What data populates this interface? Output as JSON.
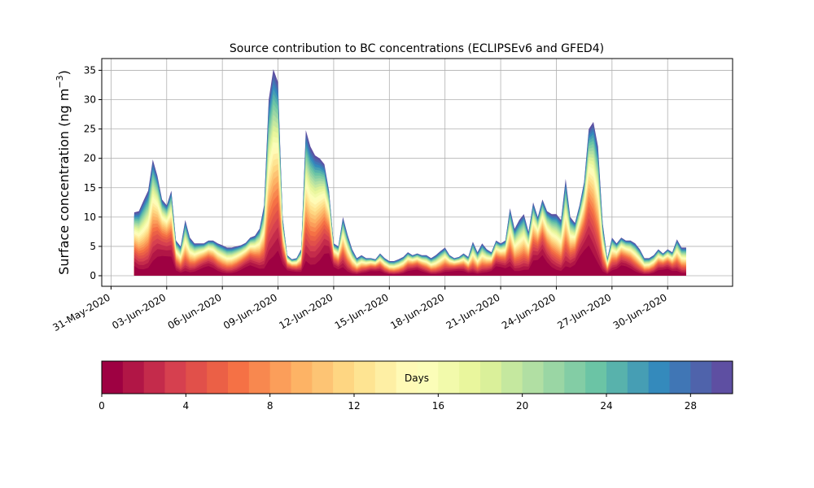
{
  "chart_data": {
    "type": "area",
    "title": "Source contribution to BC concentrations (ECLIPSEv6 and GFED4)",
    "ylabel": "Surface concentration (ng m",
    "ylabel_exponent": "−3",
    "ylabel_close": ")",
    "xlabel": "",
    "xlim": [
      "2020-05-30T12:00",
      "2020-07-03T12:00"
    ],
    "ylim": [
      -1.8,
      37
    ],
    "yticks": [
      0,
      5,
      10,
      15,
      20,
      25,
      30,
      35
    ],
    "xticks": [
      {
        "date": "2020-05-31",
        "label": "31-May-2020"
      },
      {
        "date": "2020-06-03",
        "label": "03-Jun-2020"
      },
      {
        "date": "2020-06-06",
        "label": "06-Jun-2020"
      },
      {
        "date": "2020-06-09",
        "label": "09-Jun-2020"
      },
      {
        "date": "2020-06-12",
        "label": "12-Jun-2020"
      },
      {
        "date": "2020-06-15",
        "label": "15-Jun-2020"
      },
      {
        "date": "2020-06-18",
        "label": "18-Jun-2020"
      },
      {
        "date": "2020-06-21",
        "label": "21-Jun-2020"
      },
      {
        "date": "2020-06-24",
        "label": "24-Jun-2020"
      },
      {
        "date": "2020-06-27",
        "label": "27-Jun-2020"
      },
      {
        "date": "2020-06-30",
        "label": "30-Jun-2020"
      }
    ],
    "grid": true,
    "colormap": "Spectral",
    "colormap_stops": [
      "#9e0142",
      "#d53e4f",
      "#f46d43",
      "#fdae61",
      "#fee08b",
      "#ffffbf",
      "#e6f598",
      "#abdda4",
      "#66c2a5",
      "#3288bd",
      "#5e4fa2"
    ],
    "stacked_by_days": {
      "min": 0,
      "max": 30,
      "count": 30
    },
    "colorbar": {
      "label": "Days",
      "ticks": [
        0,
        4,
        8,
        12,
        16,
        20,
        24,
        28
      ],
      "range": [
        0,
        30
      ]
    },
    "total_series": [
      [
        "2020-06-01T06:00",
        10.8
      ],
      [
        "2020-06-01T12:00",
        11.0
      ],
      [
        "2020-06-01T18:00",
        12.8
      ],
      [
        "2020-06-02T00:00",
        14.5
      ],
      [
        "2020-06-02T06:00",
        19.8
      ],
      [
        "2020-06-02T12:00",
        17.0
      ],
      [
        "2020-06-02T18:00",
        13.0
      ],
      [
        "2020-06-03T00:00",
        12.0
      ],
      [
        "2020-06-03T06:00",
        14.5
      ],
      [
        "2020-06-03T12:00",
        6.0
      ],
      [
        "2020-06-03T18:00",
        5.0
      ],
      [
        "2020-06-04T00:00",
        9.5
      ],
      [
        "2020-06-04T06:00",
        6.5
      ],
      [
        "2020-06-04T12:00",
        5.5
      ],
      [
        "2020-06-04T18:00",
        5.5
      ],
      [
        "2020-06-05T00:00",
        5.5
      ],
      [
        "2020-06-05T06:00",
        6.0
      ],
      [
        "2020-06-05T12:00",
        6.0
      ],
      [
        "2020-06-05T18:00",
        5.5
      ],
      [
        "2020-06-06T00:00",
        5.2
      ],
      [
        "2020-06-06T06:00",
        4.8
      ],
      [
        "2020-06-06T12:00",
        4.8
      ],
      [
        "2020-06-06T18:00",
        5.0
      ],
      [
        "2020-06-07T00:00",
        5.2
      ],
      [
        "2020-06-07T06:00",
        5.6
      ],
      [
        "2020-06-07T12:00",
        6.5
      ],
      [
        "2020-06-07T18:00",
        6.8
      ],
      [
        "2020-06-08T00:00",
        8.0
      ],
      [
        "2020-06-08T06:00",
        12.0
      ],
      [
        "2020-06-08T12:00",
        30.0
      ],
      [
        "2020-06-08T18:00",
        35.2
      ],
      [
        "2020-06-09T00:00",
        33.0
      ],
      [
        "2020-06-09T06:00",
        10.0
      ],
      [
        "2020-06-09T12:00",
        3.5
      ],
      [
        "2020-06-09T18:00",
        2.8
      ],
      [
        "2020-06-10T00:00",
        3.0
      ],
      [
        "2020-06-10T06:00",
        4.5
      ],
      [
        "2020-06-10T12:00",
        24.8
      ],
      [
        "2020-06-10T18:00",
        22.0
      ],
      [
        "2020-06-11T00:00",
        20.5
      ],
      [
        "2020-06-11T06:00",
        20.0
      ],
      [
        "2020-06-11T12:00",
        19.0
      ],
      [
        "2020-06-11T18:00",
        14.5
      ],
      [
        "2020-06-12T00:00",
        5.5
      ],
      [
        "2020-06-12T06:00",
        5.0
      ],
      [
        "2020-06-12T12:00",
        10.0
      ],
      [
        "2020-06-12T18:00",
        7.0
      ],
      [
        "2020-06-13T00:00",
        4.5
      ],
      [
        "2020-06-13T06:00",
        3.0
      ],
      [
        "2020-06-13T12:00",
        3.5
      ],
      [
        "2020-06-13T18:00",
        3.0
      ],
      [
        "2020-06-14T00:00",
        3.0
      ],
      [
        "2020-06-14T06:00",
        2.8
      ],
      [
        "2020-06-14T12:00",
        3.8
      ],
      [
        "2020-06-14T18:00",
        3.0
      ],
      [
        "2020-06-15T00:00",
        2.5
      ],
      [
        "2020-06-15T06:00",
        2.5
      ],
      [
        "2020-06-15T12:00",
        2.8
      ],
      [
        "2020-06-15T18:00",
        3.2
      ],
      [
        "2020-06-16T00:00",
        4.0
      ],
      [
        "2020-06-16T06:00",
        3.5
      ],
      [
        "2020-06-16T12:00",
        3.8
      ],
      [
        "2020-06-16T18:00",
        3.5
      ],
      [
        "2020-06-17T00:00",
        3.5
      ],
      [
        "2020-06-17T06:00",
        3.0
      ],
      [
        "2020-06-17T12:00",
        3.5
      ],
      [
        "2020-06-17T18:00",
        4.2
      ],
      [
        "2020-06-18T00:00",
        4.8
      ],
      [
        "2020-06-18T06:00",
        3.5
      ],
      [
        "2020-06-18T12:00",
        3.0
      ],
      [
        "2020-06-18T18:00",
        3.2
      ],
      [
        "2020-06-19T00:00",
        3.8
      ],
      [
        "2020-06-19T06:00",
        3.2
      ],
      [
        "2020-06-19T12:00",
        5.8
      ],
      [
        "2020-06-19T18:00",
        4.0
      ],
      [
        "2020-06-20T00:00",
        5.5
      ],
      [
        "2020-06-20T06:00",
        4.5
      ],
      [
        "2020-06-20T12:00",
        4.0
      ],
      [
        "2020-06-20T18:00",
        6.0
      ],
      [
        "2020-06-21T00:00",
        5.5
      ],
      [
        "2020-06-21T06:00",
        6.0
      ],
      [
        "2020-06-21T12:00",
        11.5
      ],
      [
        "2020-06-21T18:00",
        8.0
      ],
      [
        "2020-06-22T00:00",
        9.5
      ],
      [
        "2020-06-22T06:00",
        10.5
      ],
      [
        "2020-06-22T12:00",
        7.5
      ],
      [
        "2020-06-22T18:00",
        12.5
      ],
      [
        "2020-06-23T00:00",
        10.0
      ],
      [
        "2020-06-23T06:00",
        13.0
      ],
      [
        "2020-06-23T12:00",
        11.0
      ],
      [
        "2020-06-23T18:00",
        10.5
      ],
      [
        "2020-06-24T00:00",
        10.5
      ],
      [
        "2020-06-24T06:00",
        9.5
      ],
      [
        "2020-06-24T12:00",
        16.5
      ],
      [
        "2020-06-24T18:00",
        10.0
      ],
      [
        "2020-06-25T00:00",
        9.0
      ],
      [
        "2020-06-25T06:00",
        12.0
      ],
      [
        "2020-06-25T12:00",
        16.0
      ],
      [
        "2020-06-25T18:00",
        25.0
      ],
      [
        "2020-06-26T00:00",
        26.2
      ],
      [
        "2020-06-26T06:00",
        22.0
      ],
      [
        "2020-06-26T12:00",
        9.0
      ],
      [
        "2020-06-26T18:00",
        3.0
      ],
      [
        "2020-06-27T00:00",
        6.5
      ],
      [
        "2020-06-27T06:00",
        5.5
      ],
      [
        "2020-06-27T12:00",
        6.5
      ],
      [
        "2020-06-27T18:00",
        6.0
      ],
      [
        "2020-06-28T00:00",
        6.0
      ],
      [
        "2020-06-28T06:00",
        5.5
      ],
      [
        "2020-06-28T12:00",
        4.5
      ],
      [
        "2020-06-28T18:00",
        3.0
      ],
      [
        "2020-06-29T00:00",
        3.0
      ],
      [
        "2020-06-29T06:00",
        3.5
      ],
      [
        "2020-06-29T12:00",
        4.5
      ],
      [
        "2020-06-29T18:00",
        3.8
      ],
      [
        "2020-06-30T00:00",
        4.5
      ],
      [
        "2020-06-30T06:00",
        4.0
      ],
      [
        "2020-06-30T12:00",
        6.2
      ],
      [
        "2020-06-30T18:00",
        4.8
      ],
      [
        "2020-07-01T00:00",
        4.8
      ]
    ]
  }
}
